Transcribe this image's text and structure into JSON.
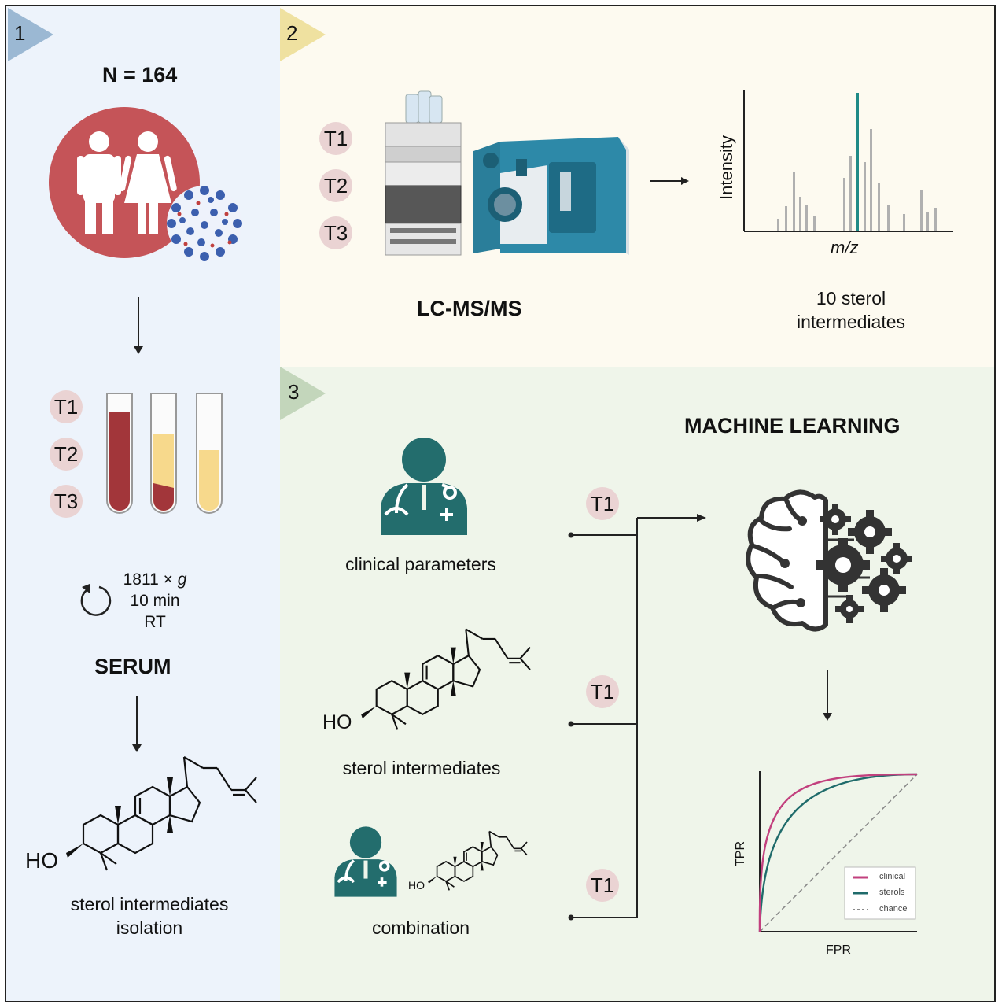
{
  "panels": [
    {
      "number": "1",
      "color": "#9bb8d3"
    },
    {
      "number": "2",
      "color": "#efe1a0"
    },
    {
      "number": "3",
      "color": "#c3d6bb"
    }
  ],
  "panel1": {
    "n_label": "N = 164",
    "timepoints": [
      "T1",
      "T2",
      "T3"
    ],
    "centrifuge": {
      "speed_prefix": "1811 × ",
      "speed_unit": "g",
      "time": "10 min",
      "temp": "RT"
    },
    "serum_label": "SERUM",
    "sterol_ho": "HO",
    "caption_line1": "sterol intermediates",
    "caption_line2": "isolation"
  },
  "panel2": {
    "timepoints": [
      "T1",
      "T2",
      "T3"
    ],
    "instrument_label": "LC-MS/MS",
    "spectrum": {
      "ylabel": "Intensity",
      "xlabel": "m/z",
      "highlight_color": "#1f8a86"
    },
    "caption_line1": "10 sterol",
    "caption_line2": "intermediates"
  },
  "panel3": {
    "title": "MACHINE LEARNING",
    "inputs": [
      {
        "label": "clinical parameters",
        "timepoint": "T1"
      },
      {
        "label": "sterol intermediates",
        "timepoint": "T1"
      },
      {
        "label": "combination",
        "timepoint": "T1"
      }
    ],
    "sterol_ho": "HO",
    "roc": {
      "xlabel": "FPR",
      "ylabel": "TPR",
      "legend": [
        {
          "name": "clinical",
          "color": "#c2407e"
        },
        {
          "name": "sterols",
          "color": "#1f6b6b"
        },
        {
          "name": "chance",
          "color": "#888888"
        }
      ]
    }
  },
  "colors": {
    "brain": "#333333",
    "doctor": "#236d6d",
    "blood": "#a2363a",
    "serum": "#f7d98c",
    "people_circle": "#c55458"
  }
}
